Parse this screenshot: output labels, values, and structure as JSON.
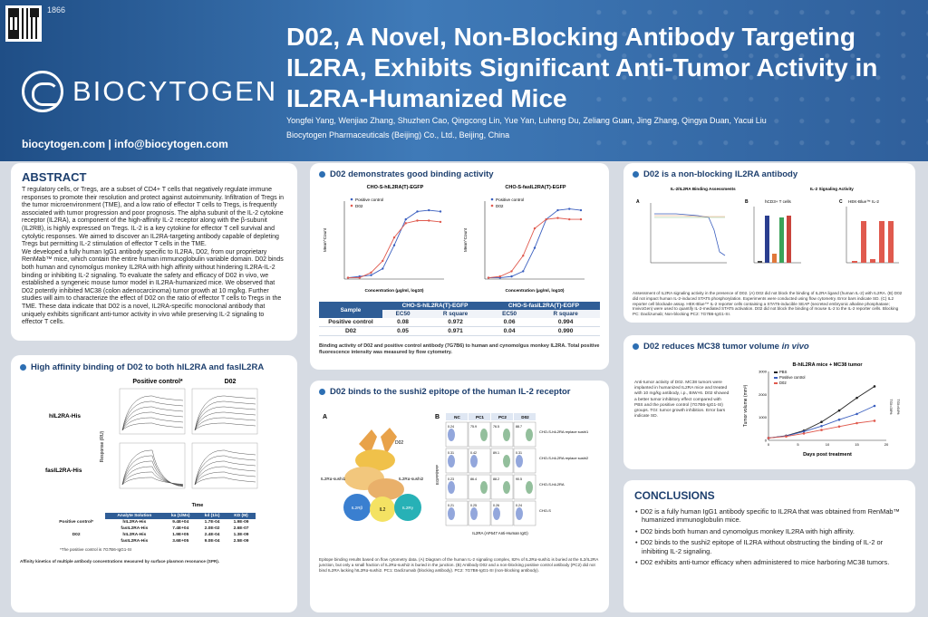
{
  "header": {
    "poster_number": "1866",
    "logo_text": "BIOCYTOGEN",
    "contact": "biocytogen.com  |  info@biocytogen.com",
    "title": "D02, A Novel, Non-Blocking Antibody Targeting IL2RA, Exhibits Significant Anti-Tumor Activity in IL2RA-Humanized Mice",
    "authors": "Yongfei Yang, Wenjiao Zhang, Shuzhen Cao, Qingcong Lin, Yue Yan, Luheng Du, Zeliang Guan, Jing Zhang, Qingya Duan, Yacui Liu",
    "affiliation": "Biocytogen Pharmaceuticals (Beijing) Co., Ltd., Beijing, China"
  },
  "abstract": {
    "heading": "ABSTRACT",
    "para1": "T regulatory cells, or Tregs, are a subset of CD4+ T cells that negatively regulate immune responses to promote their resolution and protect against autoimmunity. Infiltration of Tregs in the tumor microenvironment (TME), and a low ratio of effector T cells to Tregs, is frequently associated with tumor progression and poor prognosis. The alpha subunit of the IL-2 cytokine receptor (IL2RA), a component of the high-affinity IL-2 receptor along with the β-subunit (IL2RB), is highly expressed on Tregs. IL-2 is a key cytokine for effector T cell survival and cytolytic responses. We aimed to discover an IL2RA-targeting antibody capable of depleting Tregs but permitting IL-2 stimulation of effector T cells in the TME.",
    "para2": "We developed a fully human IgG1 antibody specific to IL2RA, D02, from our proprietary RenMab™ mice, which contain the entire human immunoglobulin variable domain. D02 binds both human and cynomolgus monkey IL2RA with high affinity without hindering IL2RA-IL-2 binding or inhibiting IL-2 signaling. To evaluate the safety and efficacy of D02 in vivo, we established a syngeneic mouse tumor model in IL2RA-humanized mice. We observed that D02 potently inhibited MC38 (colon adenocarcinoma) tumor growth at 10 mg/kg. Further studies will aim to characterize the effect of D02 on the ratio of effector T cells to Tregs in the TME. These data indicate that D02 is a novel, IL2RA-specific monoclonal antibody that uniquely exhibits significant anti-tumor activity in vivo while preserving IL-2 signaling to effector T cells."
  },
  "binding": {
    "heading": "D02 demonstrates good binding activity",
    "chart1_title": "CHO-S-hIL2RA(T)-EGFP",
    "chart2_title": "CHO-S-fasIL2RA(T)-EGFP",
    "legend_positive": "Positive control",
    "legend_d02": "D02",
    "xlabel": "Concentration (μg/ml, log10)",
    "ylabel": "Mean^Count",
    "table": {
      "col_sample": "Sample",
      "group1": "CHO-S-hIL2RA(T)-EGFP",
      "group2": "CHO-S-fasIL2RA(T)-EGFP",
      "sub": [
        "EC50",
        "R square",
        "EC50",
        "R square"
      ],
      "rows": [
        {
          "name": "Positive control",
          "vals": [
            "0.08",
            "0.972",
            "0.06",
            "0.994"
          ]
        },
        {
          "name": "D02",
          "vals": [
            "0.05",
            "0.971",
            "0.04",
            "0.990"
          ]
        }
      ]
    },
    "caption": "Binding activity of D02 and positive control antibody (7G7B6) to human and cynomolgus monkey IL2RA. Total positive fluorescence intensity was measured by flow cytometry."
  },
  "nonblocking": {
    "heading": "D02 is a non-blocking IL2RA antibody",
    "sub_a": "IL-2/IL2RA Binding Assessments",
    "sub_b": "IL-2 Signaling Activity",
    "caption": "Assessment of IL2RA signaling activity in the presence of D02. (A) D02 did not block the binding of IL2RA ligand (human IL-2) with IL2RA. (B) D02 did not impact human IL-2-induced STAT5 phosphorylation. Experiments were conducted using flow cytometry. Error bars indicate SD. (C) IL2 reporter cell blockade assay. HEK-Blue™ IL-2 reporter cells containing a STAT5-inducible SEAP (secreted embryonic alkaline phosphatase; InvivoGen) were used to quantify IL-2-mediated STAT5 activation. D02 did not block the binding of mouse IL-2 to the IL-2 reporter cells. Blocking PC: Daclizumab; Non-blocking PC2: 7G7B6-IgG1-SI.",
    "panel_b_title": "hCD3+ T cells",
    "panel_c_title": "HEK-Blue™ IL-2"
  },
  "affinity": {
    "heading": "High affinity binding of D02 to both hIL2RA and fasIL2RA",
    "col_pc": "Positive control*",
    "col_d02": "D02",
    "row1": "hIL2RA-His",
    "row2": "fasIL2RA-His",
    "ylabel": "Response (RU)",
    "xlabel": "Time",
    "table": {
      "headers": [
        "Analyte Solution",
        "ka (1/Ms)",
        "kd (1/s)",
        "KD (M)"
      ],
      "rows": [
        {
          "group": "Positive control*",
          "analyte": "hIL2RA-His",
          "ka": "9.4E+04",
          "kd": "1.7E-04",
          "KD": "1.9E-09"
        },
        {
          "group": "",
          "analyte": "fasIL2RA-His",
          "ka": "7.4E+04",
          "kd": "2.0E-02",
          "KD": "2.6E-07"
        },
        {
          "group": "D02",
          "analyte": "hIL2RA-His",
          "ka": "1.9E+05",
          "kd": "2.4E-04",
          "KD": "1.3E-09"
        },
        {
          "group": "",
          "analyte": "fasIL2RA-His",
          "ka": "3.6E+05",
          "kd": "9.0E-04",
          "KD": "2.5E-09"
        }
      ]
    },
    "footnote": "*The positive control is 7G7B6-IgG1-SI",
    "caption": "Affinity kinetics of multiple antibody concentrations measured by surface plasmon resonance (SPR)."
  },
  "sushi": {
    "heading": "D02 binds to the sushi2 epitope of the human IL-2 receptor",
    "label_a": "A",
    "label_b": "B",
    "diagram": {
      "d02": "D02",
      "sushi1": "IL2Rα-sushi1",
      "sushi2": "IL2Rα-sushi2",
      "il2rb": "IL2Rβ",
      "il2": "IL2",
      "il2rg": "IL2Rγ"
    },
    "flow_cols": [
      "NC",
      "PC1",
      "PC2",
      "D02"
    ],
    "flow_rows": [
      "CHO-S-hIL2RA replace sushi1",
      "CHO-S-hIL2RA replace sushi2",
      "CHO-S-hIL2RA",
      "CHO-S"
    ],
    "flow_values": [
      [
        "0.24",
        "75.9",
        "76.5",
        "88.7"
      ],
      [
        "0.31",
        "0.42",
        "89.1",
        "0.31"
      ],
      [
        "0.23",
        "86.4",
        "88.2",
        "90.5"
      ],
      [
        "0.21",
        "0.25",
        "0.26",
        "0.24"
      ]
    ],
    "xlabel": "IL2RA (AF647 Anti-Human IgG)",
    "ylabel": "EGFP/RFP",
    "caption": "Epitope binding results based on flow cytometry data. (A) Diagram of the human IL-2 signaling complex, 82% of IL2Rα-sushi1 is buried at the IL2/IL2RA junction, but only a small fraction of IL2Rα-sushi2 is buried in the junction. (B) Antibody D02 and a non-blocking positive control antibody (PC2) did not bind IL2RA lacking hIL2Rα-sushi2. PC1: Daclizumab (blocking antibody). PC2: 7G7B6-IgG1-SI (non-blocking antibody)."
  },
  "tumor": {
    "heading_prefix": "D02 reduces MC38 tumor volume ",
    "heading_italic": "in vivo",
    "text": "Anti-tumor activity of D02. MC38 tumors were implanted in humanized IL2RA mice and treated with 10 mg/kg antibody, i.p., BIW×6. D02 showed a better tumor inhibitory effect compared with PBS and the positive control (7G7B6-IgG1-SI) groups. TGI: tumor growth inhibition. Error bars indicate SD.",
    "chart_title": "B-hIL2RA mice + MC38 tumor",
    "xlabel": "Days post treatment",
    "ylabel": "Tumor volume (mm³)",
    "legend": [
      "PBS",
      "Positive control",
      "D02"
    ],
    "tgi1": "TGI=38%",
    "tgi2": "TGI=64%"
  },
  "conclusions": {
    "heading": "CONCLUSIONS",
    "items": [
      "D02 is a fully human IgG1 antibody specific to IL2RA that was obtained from RenMab™ humanized immunoglobulin mice.",
      "D02 binds both human and cynomolgus monkey IL2RA with high affinity.",
      "D02 binds to the sushi2 epitope of IL2RA without obstructing the binding of IL-2 or inhibiting IL-2 signaling.",
      "D02 exhibits anti-tumor efficacy when administered to mice harboring MC38 tumors."
    ]
  },
  "colors": {
    "header_blue": "#2f66a6",
    "pbs": "#222222",
    "positive_control": "#3b5fbf",
    "d02": "#e05a4e"
  },
  "chart_data": [
    {
      "type": "line",
      "title": "CHO-S-hIL2RA(T)-EGFP",
      "xlabel": "Concentration (μg/ml, log10)",
      "ylabel": "Mean^Count",
      "series": [
        {
          "name": "Positive control",
          "x": [
            -3,
            -2.5,
            -2,
            -1.5,
            -1,
            -0.5,
            0,
            0.5,
            1
          ],
          "values": [
            0.1,
            0.2,
            0.3,
            0.8,
            2.6,
            4.6,
            5.2,
            5.3,
            5.2
          ]
        },
        {
          "name": "D02",
          "x": [
            -3,
            -2.5,
            -2,
            -1.5,
            -1,
            -0.5,
            0,
            0.5,
            1
          ],
          "values": [
            0.1,
            0.1,
            0.5,
            1.4,
            3.2,
            4.3,
            4.5,
            4.5,
            4.4
          ]
        }
      ],
      "ylim": [
        0,
        6
      ]
    },
    {
      "type": "line",
      "title": "CHO-S-fasIL2RA(T)-EGFP",
      "xlabel": "Concentration (μg/ml, log10)",
      "ylabel": "Mean^Count",
      "series": [
        {
          "name": "Positive control",
          "x": [
            -3,
            -2.5,
            -2,
            -1.5,
            -1,
            -0.5,
            0,
            0.5,
            1
          ],
          "values": [
            0.1,
            0.1,
            0.2,
            0.6,
            2.4,
            4.6,
            5.3,
            5.4,
            5.3
          ]
        },
        {
          "name": "D02",
          "x": [
            -3,
            -2.5,
            -2,
            -1.5,
            -1,
            -0.5,
            0,
            0.5,
            1
          ],
          "values": [
            0.1,
            0.2,
            0.6,
            1.8,
            3.9,
            4.6,
            4.7,
            4.6,
            4.6
          ]
        }
      ],
      "ylim": [
        0,
        6
      ]
    },
    {
      "type": "line",
      "title": "B-hIL2RA mice + MC38 tumor",
      "xlabel": "Days post treatment",
      "ylabel": "Tumor volume (mm³)",
      "x": [
        0,
        3,
        6,
        9,
        12,
        15,
        18
      ],
      "series": [
        {
          "name": "PBS",
          "values": [
            100,
            200,
            420,
            800,
            1300,
            1850,
            2350
          ]
        },
        {
          "name": "Positive control",
          "values": [
            100,
            190,
            380,
            620,
            900,
            1150,
            1500
          ]
        },
        {
          "name": "D02",
          "values": [
            100,
            170,
            300,
            450,
            600,
            750,
            850
          ]
        }
      ],
      "xlim": [
        0,
        20
      ],
      "ylim": [
        0,
        3000
      ]
    }
  ]
}
